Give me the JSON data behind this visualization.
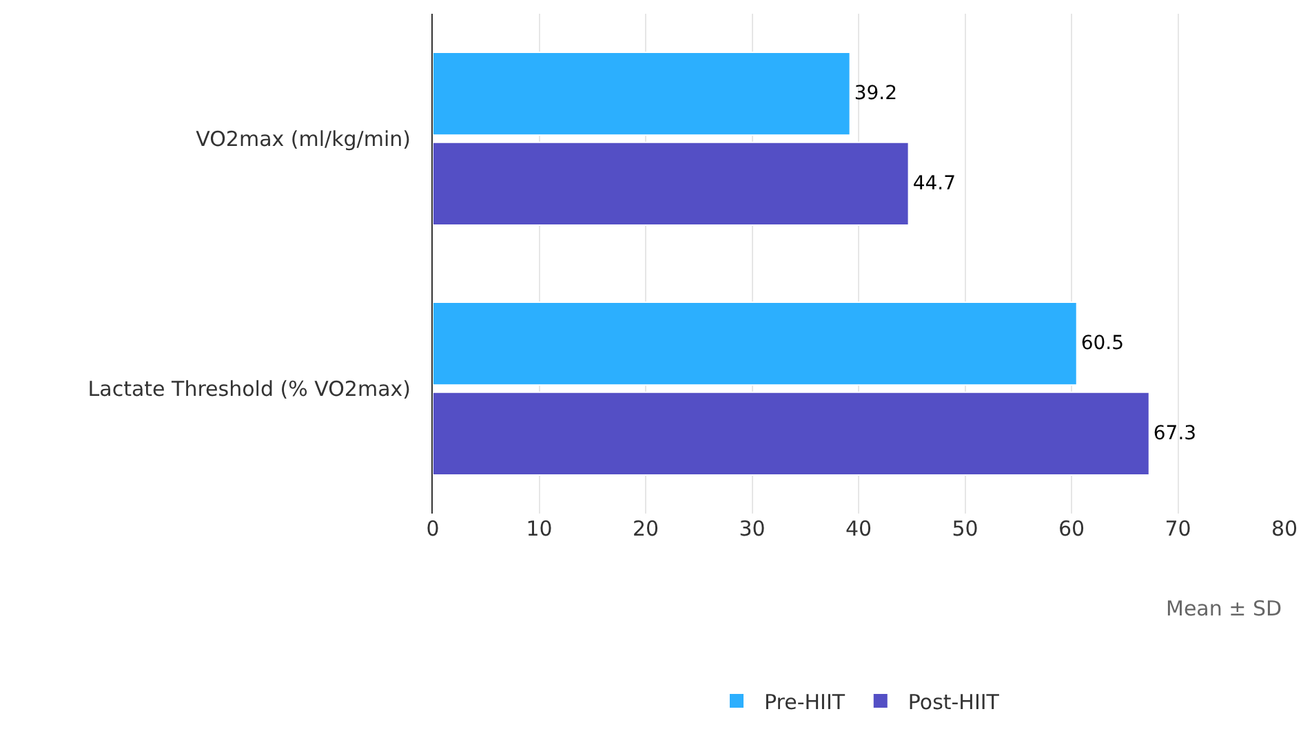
{
  "chart_data": {
    "type": "bar",
    "orientation": "horizontal",
    "categories": [
      "VO2max (ml/kg/min)",
      "Lactate Threshold (% VO2max)"
    ],
    "series": [
      {
        "name": "Pre-HIIT",
        "color": "#2caffe",
        "values": [
          39.2,
          60.5
        ]
      },
      {
        "name": "Post-HIIT",
        "color": "#544fc5",
        "values": [
          44.7,
          67.3
        ]
      }
    ],
    "xlabel": "Mean ± SD",
    "xlim": [
      0,
      80
    ],
    "xticks": [
      0,
      10,
      20,
      30,
      40,
      50,
      60,
      70,
      80
    ],
    "grid": "x",
    "legend": "bottom",
    "data_labels": true
  }
}
